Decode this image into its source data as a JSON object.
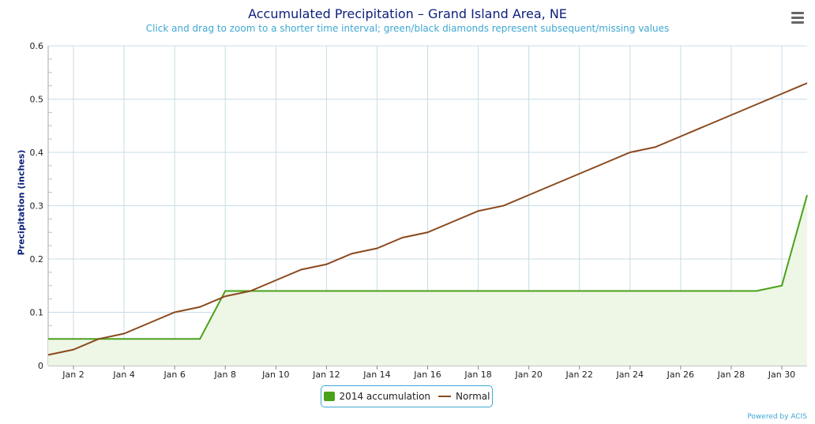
{
  "header": {
    "title": "Accumulated Precipitation – Grand Island Area, NE",
    "subtitle": "Click and drag to zoom to a shorter time interval; green/black diamonds represent subsequent/missing values"
  },
  "legend": {
    "accumulation_label": "2014 accumulation",
    "normal_label": "Normal"
  },
  "credits": "Powered by ACIS",
  "colors": {
    "accumulation": "#4aa11a",
    "accumulation_fill": "#eef6e6",
    "normal": "#8b4a1f",
    "grid": "#c8dce6",
    "title": "#0d1f7a",
    "accent": "#3ea8d3"
  },
  "chart_data": {
    "type": "line",
    "ylabel": "Precipitation (inches)",
    "xlabel": "",
    "ylim": [
      0,
      0.6
    ],
    "y_ticks": [
      0,
      0.1,
      0.2,
      0.3,
      0.4,
      0.5,
      0.6
    ],
    "y_tick_labels": [
      "0",
      "0.1",
      "0.2",
      "0.3",
      "0.4",
      "0.5",
      "0.6"
    ],
    "xlim": [
      1,
      31
    ],
    "x_ticks": [
      2,
      4,
      6,
      8,
      10,
      12,
      14,
      16,
      18,
      20,
      22,
      24,
      26,
      28,
      30
    ],
    "x_tick_labels": [
      "Jan 2",
      "Jan 4",
      "Jan 6",
      "Jan 8",
      "Jan 10",
      "Jan 12",
      "Jan 14",
      "Jan 16",
      "Jan 18",
      "Jan 20",
      "Jan 22",
      "Jan 24",
      "Jan 26",
      "Jan 28",
      "Jan 30"
    ],
    "grid": true,
    "legend_position": "bottom-center",
    "x": [
      1,
      2,
      3,
      4,
      5,
      6,
      7,
      8,
      9,
      10,
      11,
      12,
      13,
      14,
      15,
      16,
      17,
      18,
      19,
      20,
      21,
      22,
      23,
      24,
      25,
      26,
      27,
      28,
      29,
      30,
      31
    ],
    "series": [
      {
        "name": "2014 accumulation",
        "style": "area",
        "values": [
          0.05,
          0.05,
          0.05,
          0.05,
          0.05,
          0.05,
          0.05,
          0.14,
          0.14,
          0.14,
          0.14,
          0.14,
          0.14,
          0.14,
          0.14,
          0.14,
          0.14,
          0.14,
          0.14,
          0.14,
          0.14,
          0.14,
          0.14,
          0.14,
          0.14,
          0.14,
          0.14,
          0.14,
          0.14,
          0.15,
          0.32
        ]
      },
      {
        "name": "Normal",
        "style": "line",
        "values": [
          0.02,
          0.03,
          0.05,
          0.06,
          0.08,
          0.1,
          0.11,
          0.13,
          0.14,
          0.16,
          0.18,
          0.19,
          0.21,
          0.22,
          0.24,
          0.25,
          0.27,
          0.29,
          0.3,
          0.32,
          0.34,
          0.36,
          0.38,
          0.4,
          0.41,
          0.43,
          0.45,
          0.47,
          0.49,
          0.51,
          0.53
        ]
      }
    ]
  }
}
